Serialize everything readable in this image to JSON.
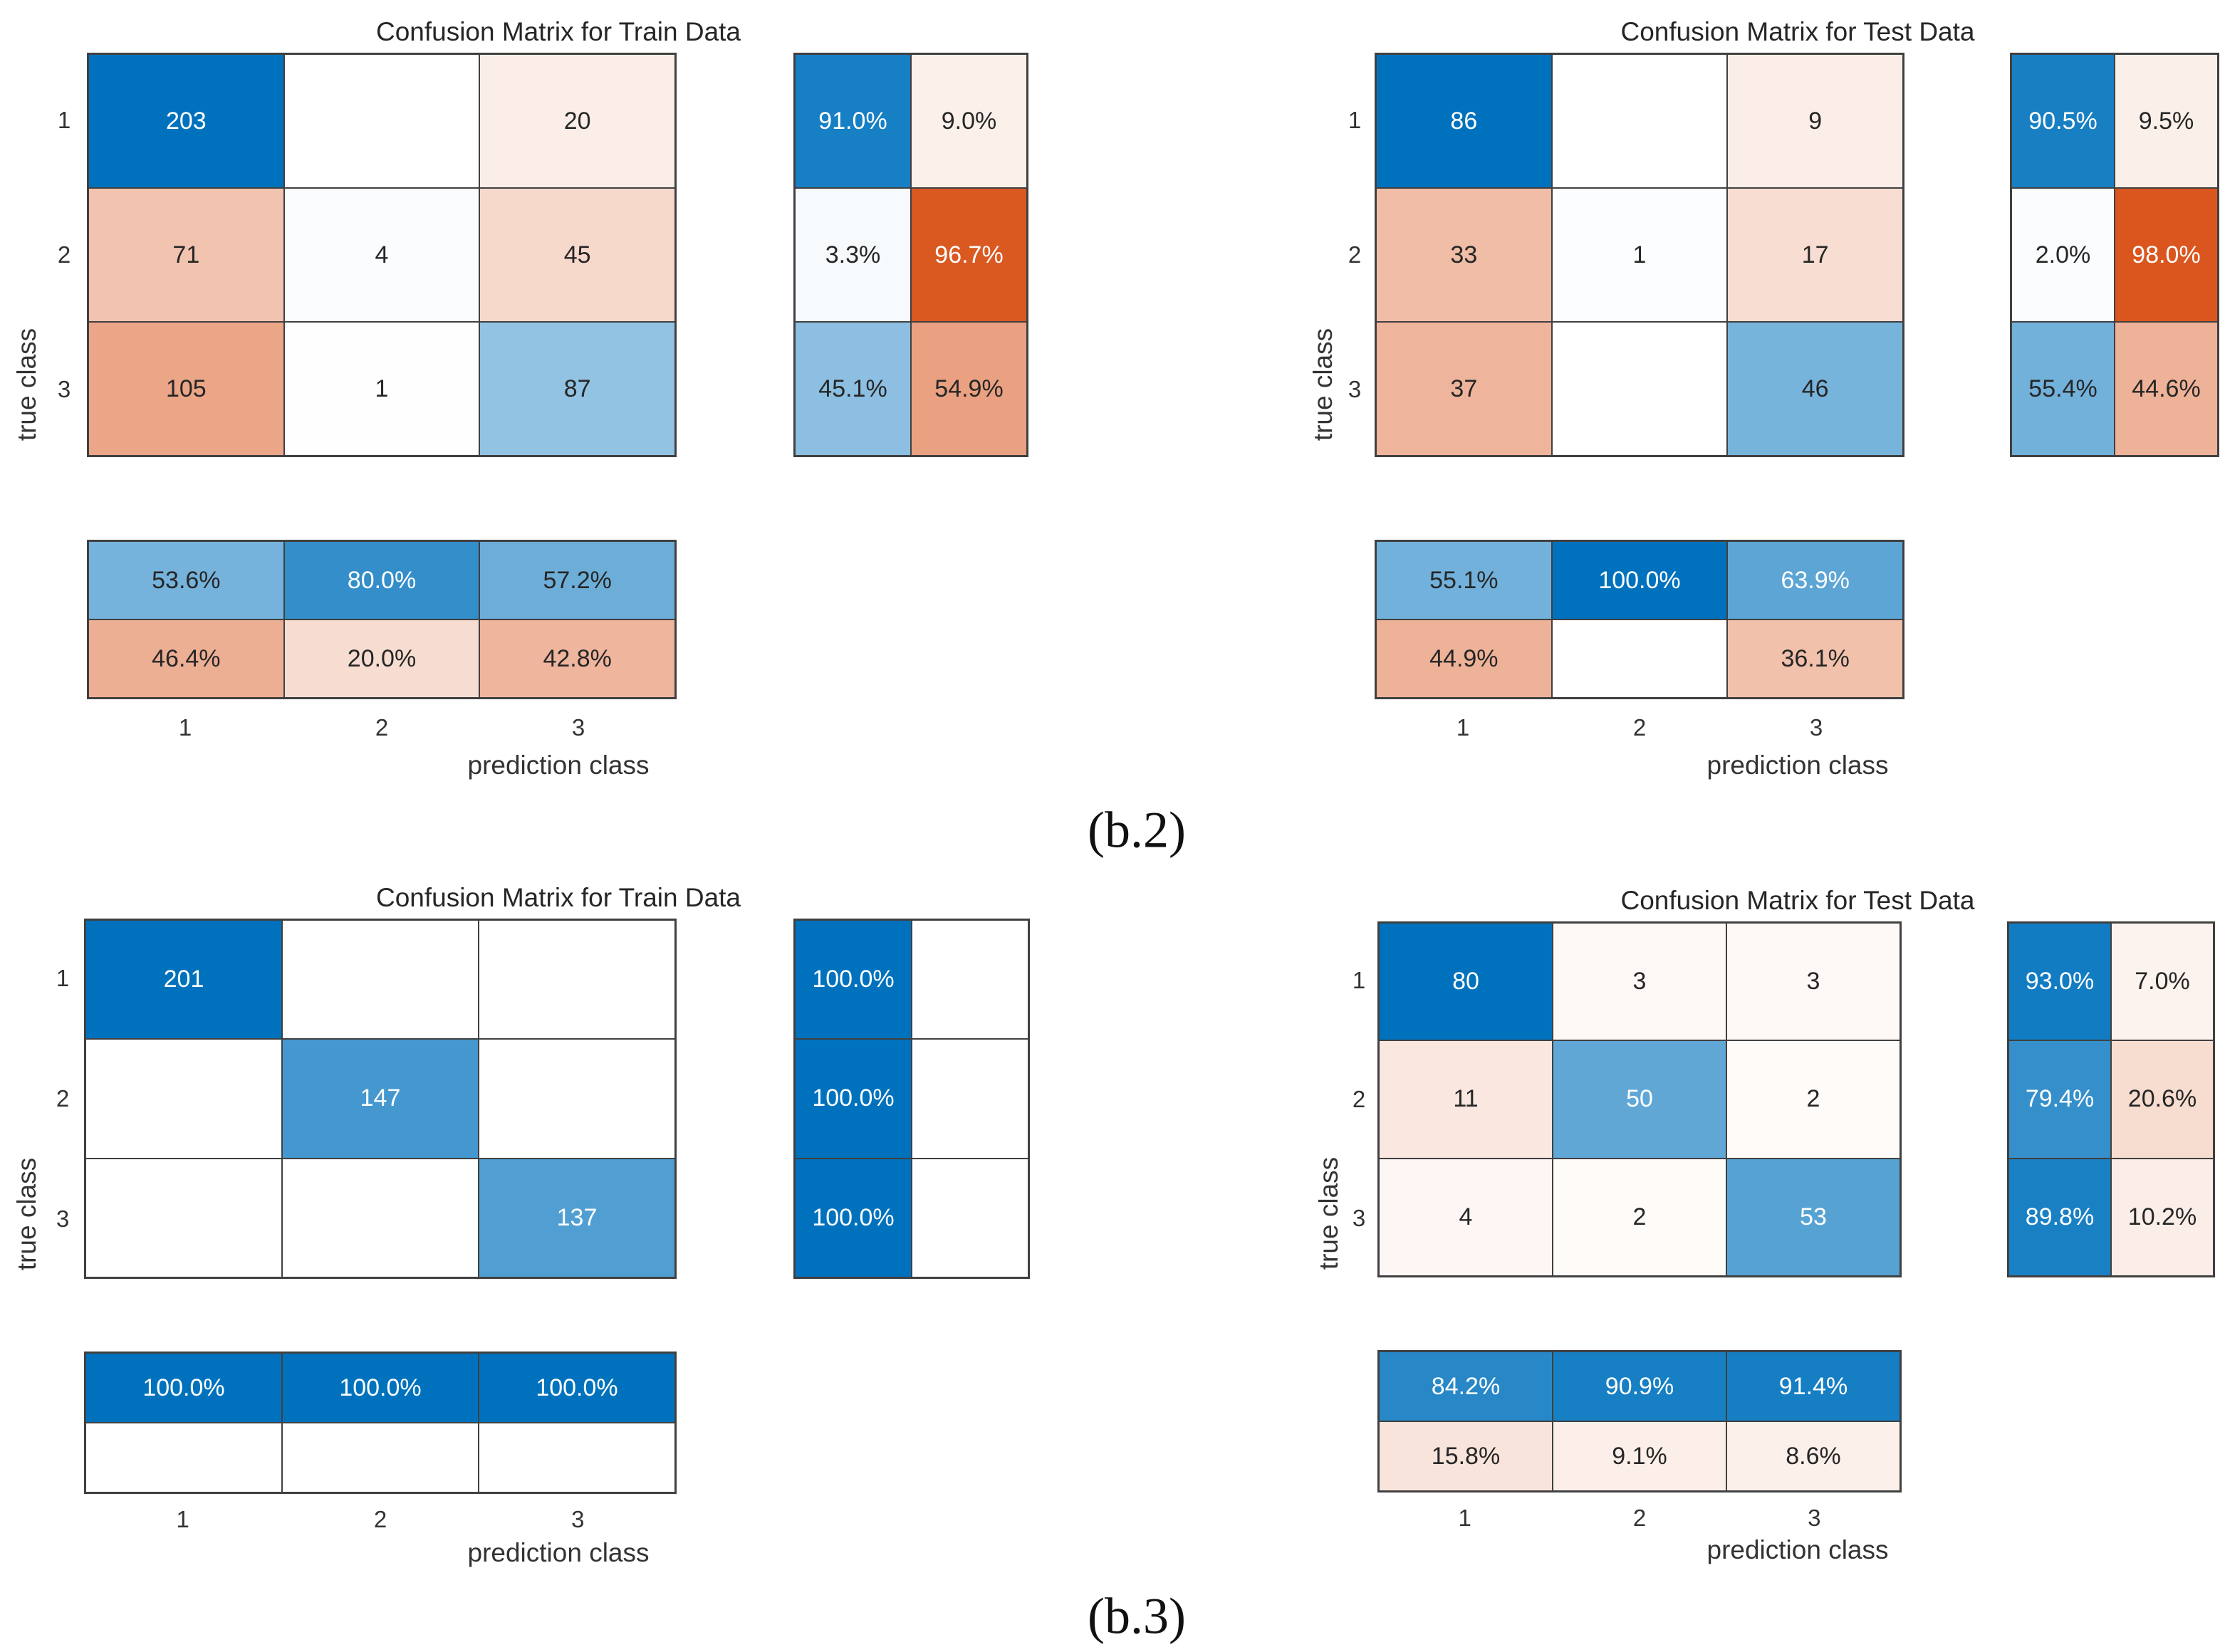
{
  "captions": [
    "(b.2)",
    "(b.3)"
  ],
  "colors": {
    "correct": "#0072BD",
    "incorrect": "#D95319"
  },
  "chart_data": [
    {
      "type": "heatmap",
      "title": "Confusion Matrix for Train Data",
      "xlabel": "prediction class",
      "ylabel": "true class",
      "classes": [
        "1",
        "2",
        "3"
      ],
      "matrix": [
        [
          203,
          null,
          20
        ],
        [
          71,
          4,
          45
        ],
        [
          105,
          1,
          87
        ]
      ],
      "row_summary": [
        [
          "91.0%",
          "9.0%"
        ],
        [
          "3.3%",
          "96.7%"
        ],
        [
          "45.1%",
          "54.9%"
        ]
      ],
      "column_summary": [
        [
          "53.6%",
          "80.0%",
          "57.2%"
        ],
        [
          "46.4%",
          "20.0%",
          "42.8%"
        ]
      ]
    },
    {
      "type": "heatmap",
      "title": "Confusion Matrix for Test Data",
      "xlabel": "prediction class",
      "ylabel": "true class",
      "classes": [
        "1",
        "2",
        "3"
      ],
      "matrix": [
        [
          86,
          null,
          9
        ],
        [
          33,
          1,
          17
        ],
        [
          37,
          null,
          46
        ]
      ],
      "row_summary": [
        [
          "90.5%",
          "9.5%"
        ],
        [
          "2.0%",
          "98.0%"
        ],
        [
          "55.4%",
          "44.6%"
        ]
      ],
      "column_summary": [
        [
          "55.1%",
          "100.0%",
          "63.9%"
        ],
        [
          "44.9%",
          null,
          "36.1%"
        ]
      ]
    },
    {
      "type": "heatmap",
      "title": "Confusion Matrix for Train Data",
      "xlabel": "prediction class",
      "ylabel": "true class",
      "classes": [
        "1",
        "2",
        "3"
      ],
      "matrix": [
        [
          201,
          null,
          null
        ],
        [
          null,
          147,
          null
        ],
        [
          null,
          null,
          137
        ]
      ],
      "row_summary": [
        [
          "100.0%",
          null
        ],
        [
          "100.0%",
          null
        ],
        [
          "100.0%",
          null
        ]
      ],
      "column_summary": [
        [
          "100.0%",
          "100.0%",
          "100.0%"
        ],
        [
          null,
          null,
          null
        ]
      ]
    },
    {
      "type": "heatmap",
      "title": "Confusion Matrix for Test Data",
      "xlabel": "prediction class",
      "ylabel": "true class",
      "classes": [
        "1",
        "2",
        "3"
      ],
      "matrix": [
        [
          80,
          3,
          3
        ],
        [
          11,
          50,
          2
        ],
        [
          4,
          2,
          53
        ]
      ],
      "row_summary": [
        [
          "93.0%",
          "7.0%"
        ],
        [
          "79.4%",
          "20.6%"
        ],
        [
          "89.8%",
          "10.2%"
        ]
      ],
      "column_summary": [
        [
          "84.2%",
          "90.9%",
          "91.4%"
        ],
        [
          "15.8%",
          "9.1%",
          "8.6%"
        ]
      ]
    }
  ]
}
